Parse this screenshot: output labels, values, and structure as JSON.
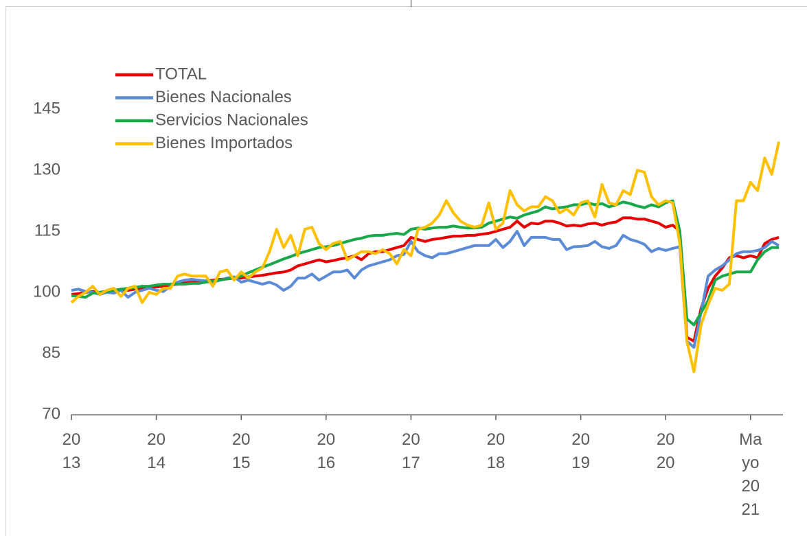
{
  "chart_data": {
    "type": "line",
    "categories": [
      "2013",
      null,
      null,
      null,
      null,
      null,
      null,
      null,
      null,
      null,
      null,
      null,
      "2014",
      null,
      null,
      null,
      null,
      null,
      null,
      null,
      null,
      null,
      null,
      null,
      "2015",
      null,
      null,
      null,
      null,
      null,
      null,
      null,
      null,
      null,
      null,
      null,
      "2016",
      null,
      null,
      null,
      null,
      null,
      null,
      null,
      null,
      null,
      null,
      null,
      "2017",
      null,
      null,
      null,
      null,
      null,
      null,
      null,
      null,
      null,
      null,
      null,
      "2018",
      null,
      null,
      null,
      null,
      null,
      null,
      null,
      null,
      null,
      null,
      null,
      "2019",
      null,
      null,
      null,
      null,
      null,
      null,
      null,
      null,
      null,
      null,
      null,
      "2020",
      null,
      null,
      null,
      null,
      null,
      null,
      null,
      null,
      null,
      null,
      null,
      "Mayo 2021",
      null,
      null,
      null,
      null
    ],
    "series": [
      {
        "name": "TOTAL",
        "color": "#e60000",
        "values": [
          99.5,
          99.7,
          100,
          100.2,
          100,
          100.3,
          100.5,
          100.7,
          100.5,
          100.8,
          101,
          101.2,
          101.3,
          101.5,
          101.8,
          102,
          102.3,
          102.5,
          102.5,
          102.8,
          103,
          103.2,
          103.3,
          103.5,
          103.5,
          103.8,
          104,
          104.2,
          104.5,
          104.8,
          105,
          105.5,
          106.5,
          107,
          107.5,
          108,
          107.5,
          107.8,
          108.2,
          108.5,
          109,
          108,
          109.5,
          110,
          110,
          110.5,
          111,
          111.5,
          113.5,
          113,
          112.5,
          113,
          113.2,
          113.5,
          113.8,
          113.8,
          114,
          114,
          114.3,
          114.5,
          115,
          115.5,
          116,
          117.5,
          116,
          117,
          116.8,
          117.5,
          117.5,
          117,
          116.3,
          116.5,
          116.3,
          116.8,
          117,
          116.5,
          117,
          117.3,
          118.3,
          118.3,
          118,
          118,
          117.5,
          117,
          116,
          116.5,
          115,
          89,
          88,
          96,
          101,
          104,
          106,
          108.5,
          109,
          108.5,
          109,
          108.5,
          112,
          113,
          113.5
        ]
      },
      {
        "name": "Bienes Nacionales",
        "color": "#5b8bd6",
        "values": [
          100.5,
          100.8,
          100.2,
          100,
          99.5,
          100,
          99.8,
          100.5,
          98.8,
          100,
          100.5,
          101,
          100.5,
          100.2,
          101.5,
          102.5,
          103,
          103.2,
          103,
          102.8,
          102.5,
          103,
          103.5,
          103.8,
          102.5,
          103,
          102.5,
          102,
          102.5,
          101.8,
          100.5,
          101.5,
          103.5,
          103.5,
          104.5,
          103,
          104,
          105,
          105,
          105.5,
          103.5,
          105.5,
          106.5,
          107,
          107.5,
          108,
          109,
          109.3,
          112.5,
          110,
          109,
          108.5,
          109.5,
          109.5,
          110,
          110.5,
          111,
          111.5,
          111.5,
          111.5,
          113,
          111,
          112.5,
          115,
          111.5,
          113.5,
          113.5,
          113.5,
          113,
          113,
          110.5,
          111.2,
          111.3,
          111.5,
          112.5,
          111.2,
          110.8,
          111.5,
          114,
          113,
          112.5,
          111.8,
          110,
          110.8,
          110.3,
          110.8,
          111.2,
          88,
          86.5,
          95,
          104,
          105.5,
          106.5,
          108,
          109.5,
          110,
          110,
          110.3,
          111,
          112.5,
          111.5
        ]
      },
      {
        "name": "Servicios Nacionales",
        "color": "#18a84a",
        "values": [
          99.2,
          99,
          98.8,
          99.8,
          100,
          100.2,
          100.5,
          100.8,
          101,
          101.2,
          101.5,
          101.5,
          101.8,
          102,
          102,
          102,
          102,
          102.2,
          102.2,
          102.5,
          102.8,
          103,
          103.3,
          103.5,
          104,
          104.8,
          105.5,
          106.2,
          106.8,
          107.5,
          108.2,
          108.8,
          109.5,
          110,
          110.5,
          111,
          111.2,
          111.5,
          112,
          112.5,
          113,
          113.3,
          113.8,
          114,
          114,
          114.3,
          114.5,
          114.2,
          115.5,
          115.8,
          115.5,
          115.8,
          116,
          116,
          116.3,
          116,
          115.8,
          115.8,
          116,
          117,
          117.5,
          118,
          118.5,
          118.2,
          119,
          119.5,
          120,
          121,
          120.5,
          120.8,
          121,
          121.5,
          121.5,
          122,
          121.5,
          121.8,
          121,
          121.5,
          122.2,
          121.8,
          121.2,
          120.8,
          121.5,
          121,
          122,
          122.5,
          115,
          93.5,
          92,
          95,
          98,
          103,
          104,
          104.5,
          105,
          105,
          105,
          108,
          110,
          111,
          111
        ]
      },
      {
        "name": "Bienes Importados",
        "color": "#ffc000",
        "values": [
          97.5,
          99,
          100,
          101.5,
          99.5,
          100.5,
          101,
          99,
          101,
          101.5,
          97.5,
          100,
          99.5,
          101,
          101,
          104,
          104.5,
          104,
          104,
          104,
          101.5,
          105,
          105.5,
          103,
          105,
          103.5,
          105,
          106,
          110,
          115.5,
          111,
          114,
          109,
          115.5,
          116,
          112,
          110.5,
          112,
          112.5,
          108,
          109,
          110,
          110,
          109.5,
          110.5,
          109.5,
          107,
          110.5,
          109,
          115.5,
          116,
          117,
          119,
          122.5,
          119.5,
          117.5,
          116.5,
          116,
          116.5,
          122,
          115.5,
          117,
          125,
          121.5,
          120,
          121,
          121,
          123.5,
          122.5,
          119.5,
          120.5,
          119,
          122,
          122.5,
          118.5,
          126.5,
          122,
          121.5,
          125,
          124,
          130,
          129.5,
          123.5,
          121.5,
          122.5,
          122,
          112,
          88,
          80.5,
          92,
          97,
          101,
          100.5,
          102,
          122.5,
          122.5,
          127,
          125,
          133,
          129,
          137
        ]
      }
    ],
    "ylim": [
      70,
      145
    ],
    "yticks": [
      70,
      85,
      100,
      115,
      130,
      145
    ],
    "grid": false,
    "legend": "upper left"
  }
}
